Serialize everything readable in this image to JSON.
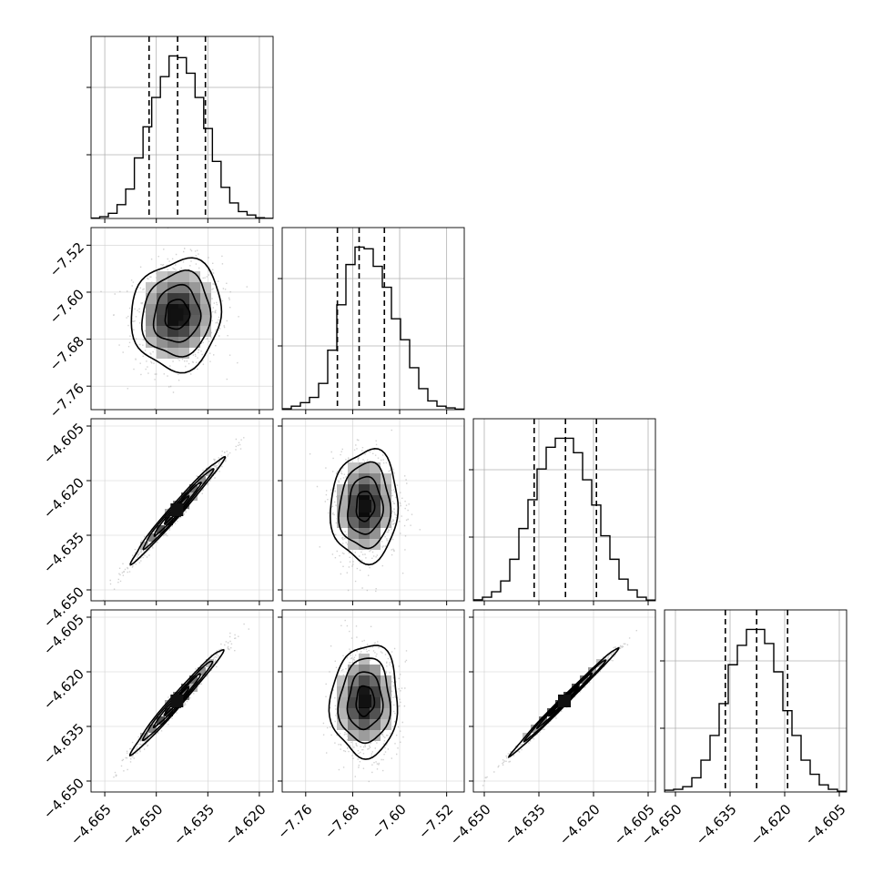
{
  "chart_data": {
    "type": "corner",
    "n_params": 4,
    "parameters": [
      {
        "range": [
          -4.669,
          -4.616
        ],
        "ticks": [
          -4.665,
          -4.65,
          -4.635,
          -4.62
        ],
        "tick_labels": [
          "−4.665",
          "−4.650",
          "−4.635",
          "−4.620"
        ]
      },
      {
        "range": [
          -7.8,
          -7.49
        ],
        "ticks": [
          -7.76,
          -7.68,
          -7.6,
          -7.52
        ],
        "tick_labels": [
          "−7.76",
          "−7.68",
          "−7.60",
          "−7.52"
        ]
      },
      {
        "range": [
          -4.653,
          -4.603
        ],
        "ticks": [
          -4.65,
          -4.635,
          -4.62,
          -4.605
        ],
        "tick_labels": [
          "−4.650",
          "−4.635",
          "−4.620",
          "−4.605"
        ]
      },
      {
        "range": [
          -4.653,
          -4.603
        ],
        "ticks": [
          -4.65,
          -4.635,
          -4.62,
          -4.605
        ],
        "tick_labels": [
          "−4.650",
          "−4.635",
          "−4.620",
          "−4.605"
        ]
      }
    ],
    "histograms": [
      {
        "quantiles": [
          -4.6521,
          -4.6438,
          -4.6357
        ],
        "counts": [
          0.2,
          1,
          3,
          8,
          17,
          35,
          53,
          70,
          82,
          94,
          93,
          84,
          70,
          52,
          33,
          18,
          9,
          4,
          2,
          0.4,
          0.1
        ]
      },
      {
        "quantiles": [
          -7.706,
          -7.669,
          -7.626
        ],
        "counts": [
          0.5,
          2,
          4,
          7,
          15,
          34,
          60,
          83,
          93,
          92,
          82,
          70,
          52,
          40,
          24,
          12,
          5,
          2,
          1,
          0.3
        ]
      },
      {
        "quantiles": [
          -4.6363,
          -4.6277,
          -4.6192
        ],
        "counts": [
          0.5,
          2,
          5,
          11,
          23,
          40,
          56,
          73,
          85,
          90,
          90,
          82,
          67,
          53,
          36,
          23,
          12,
          6,
          2,
          0.4
        ]
      },
      {
        "quantiles": [
          -4.6363,
          -4.6277,
          -4.6192
        ],
        "counts": [
          1,
          1.5,
          3,
          8,
          18,
          32,
          50,
          72,
          83,
          92,
          92,
          84,
          68,
          46,
          32,
          18,
          10,
          4,
          1.5,
          0.4
        ]
      }
    ],
    "pairs": [
      {
        "x": 0,
        "y": 1,
        "center": [
          -4.644,
          -7.638
        ],
        "spread": [
          0.0064,
          0.046
        ],
        "corr": 0.08
      },
      {
        "x": 0,
        "y": 2,
        "center": [
          -4.644,
          -4.628
        ],
        "spread": [
          0.0065,
          0.007
        ],
        "corr": 0.985
      },
      {
        "x": 1,
        "y": 2,
        "center": [
          -7.659,
          -4.627
        ],
        "spread": [
          0.028,
          0.0075
        ],
        "corr": 0.05
      },
      {
        "x": 0,
        "y": 3,
        "center": [
          -4.644,
          -4.628
        ],
        "spread": [
          0.0065,
          0.007
        ],
        "corr": 0.985
      },
      {
        "x": 1,
        "y": 3,
        "center": [
          -7.659,
          -4.628
        ],
        "spread": [
          0.028,
          0.0075
        ],
        "corr": 0.05
      },
      {
        "x": 2,
        "y": 3,
        "center": [
          -4.628,
          -4.628
        ],
        "spread": [
          0.0072,
          0.0072
        ],
        "corr": 0.995
      }
    ],
    "grid": true,
    "title": "",
    "xlabel": "",
    "ylabel": ""
  }
}
